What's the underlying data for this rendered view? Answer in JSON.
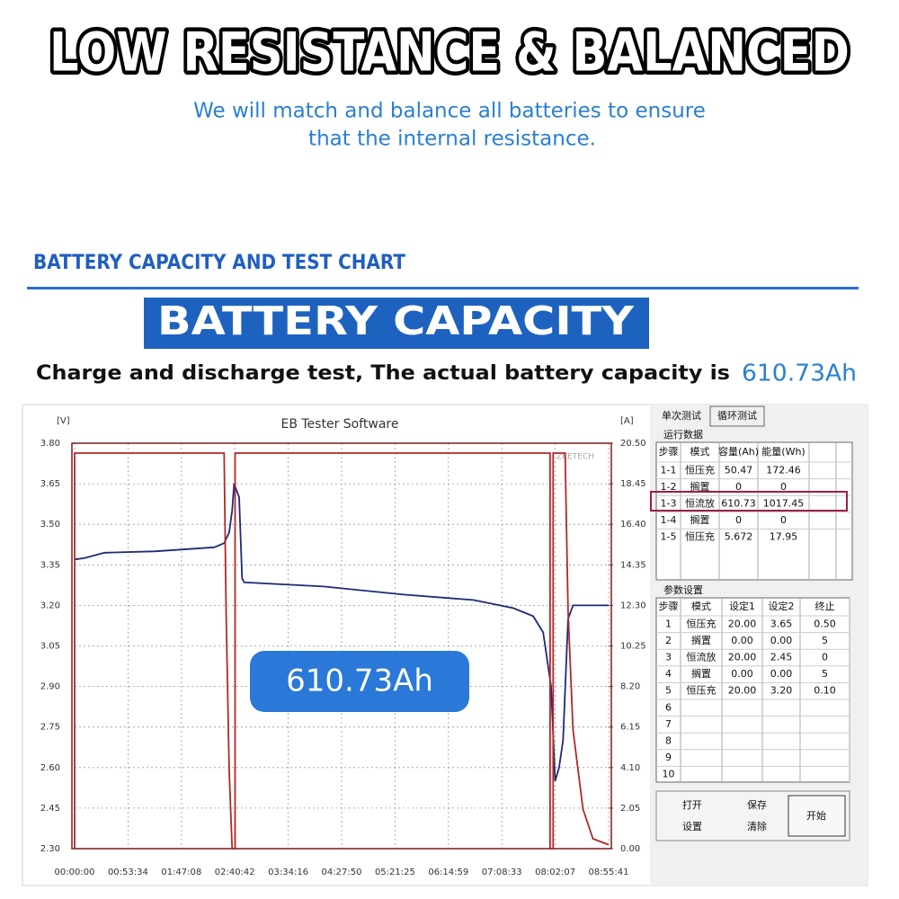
{
  "header": {
    "title": "LOW RESISTANCE & BALANCED",
    "subtitle_lines": [
      "We will match and balance all batteries to ensure",
      "that the internal resistance."
    ]
  },
  "section": {
    "heading": "BATTERY CAPACITY AND TEST CHART",
    "banner": "BATTERY CAPACITY",
    "statement": "Charge and discharge test, The actual battery capacity is",
    "capacity": "610.73Ah",
    "badge": "610.73Ah"
  },
  "chart_data": {
    "type": "line",
    "title": "EB Tester Software",
    "y_unit": "[V]",
    "y2_unit": "[A]",
    "watermark": "ZKETECH",
    "grid": true,
    "xlim": [
      0,
      535.68
    ],
    "xticks": [
      {
        "value": 0,
        "label": "00:00:00"
      },
      {
        "value": 53.57,
        "label": "00:53:34"
      },
      {
        "value": 107.13,
        "label": "01:47:08"
      },
      {
        "value": 160.7,
        "label": "02:40:42"
      },
      {
        "value": 214.27,
        "label": "03:34:16"
      },
      {
        "value": 267.83,
        "label": "04:27:50"
      },
      {
        "value": 321.42,
        "label": "05:21:25"
      },
      {
        "value": 374.98,
        "label": "06:14:59"
      },
      {
        "value": 428.55,
        "label": "07:08:33"
      },
      {
        "value": 482.12,
        "label": "08:02:07"
      },
      {
        "value": 535.68,
        "label": "08:55:41"
      }
    ],
    "ylim": [
      2.3,
      3.8
    ],
    "yticks": [
      {
        "value": 3.8,
        "label": "3.80"
      },
      {
        "value": 3.65,
        "label": "3.65"
      },
      {
        "value": 3.5,
        "label": "3.50"
      },
      {
        "value": 3.35,
        "label": "3.35"
      },
      {
        "value": 3.2,
        "label": "3.20"
      },
      {
        "value": 3.05,
        "label": "3.05"
      },
      {
        "value": 2.9,
        "label": "2.90"
      },
      {
        "value": 2.75,
        "label": "2.75"
      },
      {
        "value": 2.6,
        "label": "2.60"
      },
      {
        "value": 2.45,
        "label": "2.45"
      },
      {
        "value": 2.3,
        "label": "2.30"
      }
    ],
    "y2lim": [
      0,
      20.5
    ],
    "y2ticks": [
      {
        "value": 20.5,
        "label": "20.50"
      },
      {
        "value": 18.45,
        "label": "18.45"
      },
      {
        "value": 16.4,
        "label": "16.40"
      },
      {
        "value": 14.35,
        "label": "14.35"
      },
      {
        "value": 12.3,
        "label": "12.30"
      },
      {
        "value": 10.25,
        "label": "10.25"
      },
      {
        "value": 8.2,
        "label": "8.20"
      },
      {
        "value": 6.15,
        "label": "6.15"
      },
      {
        "value": 4.1,
        "label": "4.10"
      },
      {
        "value": 2.05,
        "label": "2.05"
      },
      {
        "value": 0,
        "label": "0.00"
      }
    ],
    "series": [
      {
        "color": "#1c2a7a",
        "axis": "y",
        "x": [
          0,
          10,
          30,
          80,
          120,
          140,
          150,
          155,
          158,
          160,
          165,
          168,
          170,
          250,
          330,
          400,
          440,
          460,
          470,
          478,
          482,
          486,
          490,
          495,
          500,
          535.68
        ],
        "values": [
          3.37,
          3.375,
          3.395,
          3.4,
          3.41,
          3.415,
          3.43,
          3.47,
          3.55,
          3.65,
          3.6,
          3.3,
          3.285,
          3.27,
          3.24,
          3.22,
          3.19,
          3.16,
          3.1,
          2.9,
          2.55,
          2.6,
          2.7,
          3.15,
          3.2,
          3.2
        ]
      },
      {
        "color": "#b0282a",
        "axis": "y2",
        "x": [
          0,
          0,
          150,
          152,
          155,
          158,
          161,
          161,
          477,
          477,
          480,
          480,
          492,
          495,
          500,
          510,
          520,
          535.68
        ],
        "values": [
          0,
          20,
          20,
          12,
          4,
          0,
          0,
          20,
          20,
          0,
          0,
          20,
          20,
          12,
          6,
          2,
          0.5,
          0.2
        ]
      }
    ]
  },
  "panel": {
    "tabs": [
      "单次测试",
      "循环测试"
    ],
    "run_label": "运行数据",
    "run_table": {
      "header": [
        "步骤",
        "模式",
        "容量(Ah)",
        "能量(Wh)"
      ],
      "rows": [
        [
          "1-1",
          "恒压充",
          "50.47",
          "172.46"
        ],
        [
          "1-2",
          "搁置",
          "0",
          "0"
        ],
        [
          "1-3",
          "恒流放",
          "610.73",
          "1017.45"
        ],
        [
          "1-4",
          "搁置",
          "0",
          "0"
        ],
        [
          "1-5",
          "恒压充",
          "5.672",
          "17.95"
        ]
      ]
    },
    "param_label": "参数设置",
    "param_table": {
      "header": [
        "步骤",
        "模式",
        "设定1",
        "设定2",
        "终止"
      ],
      "rows": [
        [
          "1",
          "恒压充",
          "20.00",
          "3.65",
          "0.50"
        ],
        [
          "2",
          "搁置",
          "0.00",
          "0.00",
          "5"
        ],
        [
          "3",
          "恒流放",
          "20.00",
          "2.45",
          "0"
        ],
        [
          "4",
          "搁置",
          "0.00",
          "0.00",
          "5"
        ],
        [
          "5",
          "恒压充",
          "20.00",
          "3.20",
          "0.10"
        ],
        [
          "6"
        ],
        [
          "7"
        ],
        [
          "8"
        ],
        [
          "9"
        ],
        [
          "10"
        ]
      ]
    },
    "buttons": [
      "打开",
      "保存",
      "设置",
      "清除",
      "开始"
    ]
  }
}
